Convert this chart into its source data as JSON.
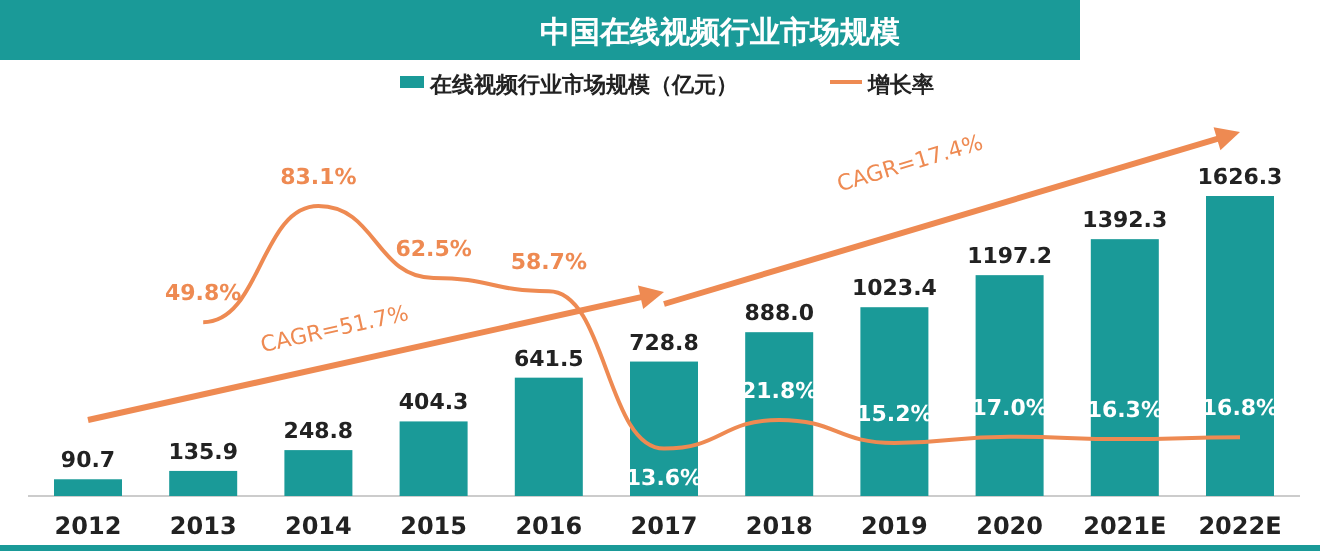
{
  "chart_data": {
    "type": "bar",
    "title": "中国在线视频行业市场规模",
    "categories": [
      "2012",
      "2013",
      "2014",
      "2015",
      "2016",
      "2017",
      "2018",
      "2019",
      "2020",
      "2021E",
      "2022E"
    ],
    "series": [
      {
        "name": "在线视频行业市场规模（亿元）",
        "color": "#1a9a98",
        "values": [
          90.7,
          135.9,
          248.8,
          404.3,
          641.5,
          728.8,
          888.0,
          1023.4,
          1197.2,
          1392.3,
          1626.3
        ],
        "value_labels": [
          "90.7",
          "135.9",
          "248.8",
          "404.3",
          "641.5",
          "728.8",
          "888.0",
          "1023.4",
          "1197.2",
          "1392.3",
          "1626.3"
        ]
      },
      {
        "name": "增长率",
        "type": "line",
        "axis": "y2",
        "color": "#ee8a52",
        "values": [
          null,
          49.8,
          83.1,
          62.5,
          58.7,
          13.6,
          21.8,
          15.2,
          17.0,
          16.3,
          16.8
        ],
        "value_labels": [
          null,
          "49.8%",
          "83.1%",
          "62.5%",
          "58.7%",
          "13.6%",
          "21.8%",
          "15.2%",
          "17.0%",
          "16.3%",
          "16.8%"
        ]
      }
    ],
    "legend": "top",
    "annotations": [
      "CAGR=51.7%",
      "CAGR=17.4%"
    ]
  }
}
